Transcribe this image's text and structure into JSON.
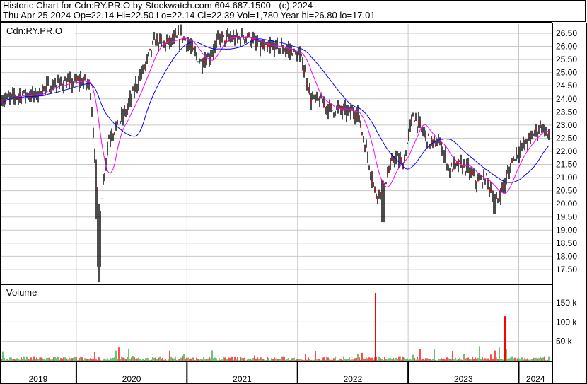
{
  "header": {
    "title": "Historic Chart for Cdn:RY.PR.O by Stockwatch.com 604.687.1500 - (c) 2024",
    "quote": "Thu Apr 25 2024  Op=22.14  Hi=22.50  Lo=22.14  Cl=22.39  Vol=1,780  Year hi=26.80  lo=17.01"
  },
  "chart_data": {
    "type": "line",
    "symbol": "Cdn:RY.PR.O",
    "volume_label": "Volume",
    "price_ticks": [
      "26.50",
      "26.00",
      "25.50",
      "25.00",
      "24.50",
      "24.00",
      "23.50",
      "23.00",
      "22.50",
      "22.00",
      "21.50",
      "21.00",
      "20.50",
      "20.00",
      "19.50",
      "19.00",
      "18.50",
      "18.00",
      "17.50"
    ],
    "ylim": [
      17.0,
      26.9
    ],
    "volume_ticks": [
      "150 k",
      "100 k",
      "50 k"
    ],
    "volume_ylim": [
      0,
      190000
    ],
    "year_labels": [
      "2019",
      "2020",
      "2021",
      "2022",
      "2023",
      "2024"
    ],
    "grid": true,
    "colors": {
      "bars": "#000000",
      "close_tick": "#ff0000",
      "ma_short": "#ff00ff",
      "ma_long": "#0000ff",
      "vol_up": "#33aa33",
      "vol_down": "#ff0000",
      "grid": "#c8c8c8"
    },
    "monthly_close": {
      "months": [
        "2019-05",
        "2019-06",
        "2019-07",
        "2019-08",
        "2019-09",
        "2019-10",
        "2019-11",
        "2019-12",
        "2020-01",
        "2020-02",
        "2020-03",
        "2020-04",
        "2020-05",
        "2020-06",
        "2020-07",
        "2020-08",
        "2020-09",
        "2020-10",
        "2020-11",
        "2020-12",
        "2021-01",
        "2021-02",
        "2021-03",
        "2021-04",
        "2021-05",
        "2021-06",
        "2021-07",
        "2021-08",
        "2021-09",
        "2021-10",
        "2021-11",
        "2021-12",
        "2022-01",
        "2022-02",
        "2022-03",
        "2022-04",
        "2022-05",
        "2022-06",
        "2022-07",
        "2022-08",
        "2022-09",
        "2022-10",
        "2022-11",
        "2022-12",
        "2023-01",
        "2023-02",
        "2023-03",
        "2023-04",
        "2023-05",
        "2023-06",
        "2023-07",
        "2023-08",
        "2023-09",
        "2023-10",
        "2023-11",
        "2023-12",
        "2024-01",
        "2024-02",
        "2024-03",
        "2024-04"
      ],
      "close": [
        24.0,
        24.1,
        24.2,
        24.1,
        24.4,
        24.5,
        24.6,
        24.6,
        24.7,
        24.5,
        19.5,
        22.5,
        23.0,
        23.6,
        24.5,
        25.3,
        26.2,
        26.1,
        26.2,
        26.4,
        25.9,
        25.4,
        25.6,
        26.3,
        26.3,
        26.3,
        26.4,
        26.1,
        25.9,
        26.0,
        25.9,
        25.8,
        25.5,
        24.0,
        23.9,
        23.6,
        23.6,
        23.5,
        23.5,
        22.0,
        20.3,
        20.8,
        21.8,
        21.5,
        23.4,
        22.8,
        22.3,
        22.3,
        21.3,
        21.5,
        21.3,
        20.8,
        21.0,
        20.0,
        20.8,
        21.8,
        22.2,
        22.6,
        23.0,
        22.39
      ]
    },
    "volume_spikes": [
      {
        "month": "2022-09",
        "volume": 175000
      },
      {
        "month": "2023-11",
        "volume": 115000
      }
    ]
  }
}
